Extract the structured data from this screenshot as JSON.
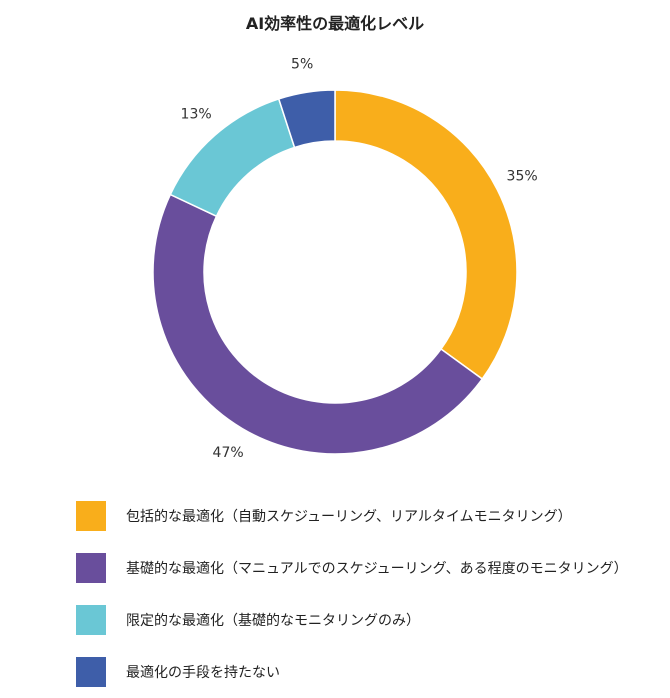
{
  "chart_data": {
    "type": "pie",
    "variant": "donut",
    "title": "AI効率性の最適化レベル",
    "categories": [
      "包括的な最適化（自動スケジューリング、リアルタイムモニタリング）",
      "基礎的な最適化（マニュアルでのスケジューリング、ある程度のモニタリング）",
      "限定的な最適化（基礎的なモニタリングのみ）",
      "最適化の手段を持たない"
    ],
    "values": [
      35,
      47,
      13,
      5
    ],
    "value_labels": [
      "35%",
      "47%",
      "13%",
      "5%"
    ],
    "colors": [
      "#F9AE1B",
      "#694E9C",
      "#6AC7D5",
      "#3E5EA9"
    ],
    "legend_position": "bottom",
    "start_angle": "top",
    "direction": "clockwise"
  }
}
